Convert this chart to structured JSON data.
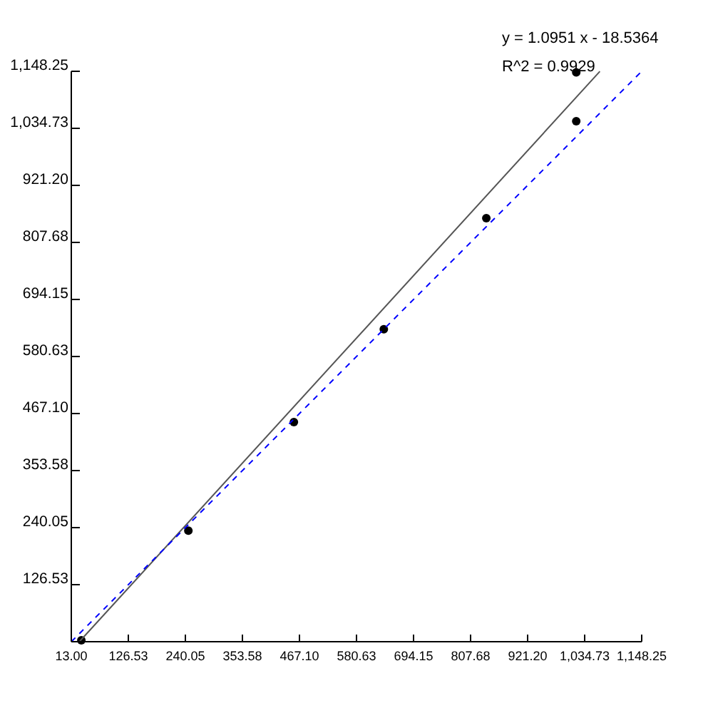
{
  "chart_data": {
    "type": "scatter",
    "xlim": [
      13,
      1148.25
    ],
    "ylim": [
      13,
      1148.25
    ],
    "xticks": [
      {
        "value": 13,
        "label": "13.00"
      },
      {
        "value": 126.53,
        "label": "126.53"
      },
      {
        "value": 240.05,
        "label": "240.05"
      },
      {
        "value": 353.58,
        "label": "353.58"
      },
      {
        "value": 467.1,
        "label": "467.10"
      },
      {
        "value": 580.63,
        "label": "580.63"
      },
      {
        "value": 694.15,
        "label": "694.15"
      },
      {
        "value": 807.68,
        "label": "807.68"
      },
      {
        "value": 921.2,
        "label": "921.20"
      },
      {
        "value": 1034.73,
        "label": "1,034.73"
      },
      {
        "value": 1148.25,
        "label": "1,148.25"
      }
    ],
    "yticks": [
      {
        "value": 126.53,
        "label": "126.53"
      },
      {
        "value": 240.05,
        "label": "240.05"
      },
      {
        "value": 353.58,
        "label": "353.58"
      },
      {
        "value": 467.1,
        "label": "467.10"
      },
      {
        "value": 580.63,
        "label": "580.63"
      },
      {
        "value": 694.15,
        "label": "694.15"
      },
      {
        "value": 807.68,
        "label": "807.68"
      },
      {
        "value": 921.2,
        "label": "921.20"
      },
      {
        "value": 1034.73,
        "label": "1,034.73"
      },
      {
        "value": 1148.25,
        "label": "1,148.25"
      }
    ],
    "grid": false,
    "series": [
      {
        "color": "#000000",
        "marker": "circle",
        "x": [
          33,
          246,
          456,
          635,
          839,
          1018,
          1018
        ],
        "values": [
          16,
          234,
          450,
          635,
          856,
          1049,
          1146
        ]
      },
      {
        "type": "line",
        "color": "#555555",
        "line_style": "solid",
        "marker": "none",
        "x": [
          30,
          1065
        ],
        "values": [
          14,
          1148
        ]
      },
      {
        "type": "line",
        "color": "#0000ff",
        "line_style": "dashed",
        "marker": "none",
        "x": [
          13,
          1148
        ],
        "values": [
          13,
          1148
        ]
      }
    ],
    "annotations": [
      "y = 1.0951 x - 18.5364",
      "R^2 = 0.9929"
    ]
  }
}
